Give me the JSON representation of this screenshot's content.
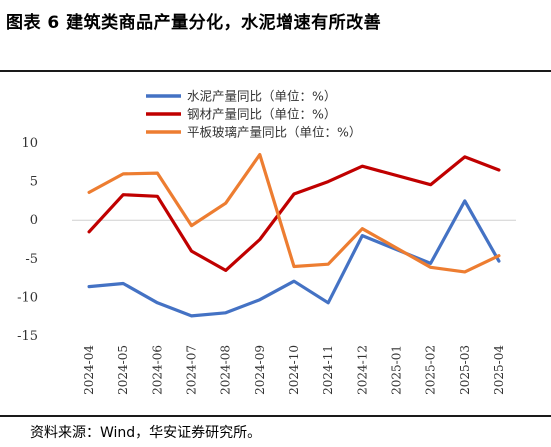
{
  "header": {
    "title": "图表 6  建筑类商品产量分化，水泥增速有所改善"
  },
  "footer": {
    "source": "资料来源：Wind，华安证券研究所。"
  },
  "chart_data": {
    "type": "line",
    "title": "",
    "xlabel": "",
    "ylabel": "",
    "ylim": [
      -15,
      10
    ],
    "yticks": [
      10,
      5,
      0,
      -5,
      -10,
      -15
    ],
    "grid": false,
    "legend_position": "top",
    "categories": [
      "2024-04",
      "2024-05",
      "2024-06",
      "2024-07",
      "2024-08",
      "2024-09",
      "2024-10",
      "2024-11",
      "2024-12",
      "2025-01",
      "2025-02",
      "2025-03",
      "2025-04"
    ],
    "series": [
      {
        "name": "水泥产量同比（单位：%）",
        "color": "#4472C4",
        "values": [
          -8.6,
          -8.2,
          -10.7,
          -12.4,
          -12.0,
          -10.3,
          -7.9,
          -10.7,
          -2.0,
          null,
          -5.6,
          2.5,
          -5.3
        ]
      },
      {
        "name": "钢材产量同比（单位：%）",
        "color": "#C00000",
        "values": [
          -1.5,
          3.3,
          3.1,
          -4.0,
          -6.5,
          -2.5,
          3.4,
          5.0,
          7.0,
          null,
          4.6,
          8.2,
          6.5
        ]
      },
      {
        "name": "平板玻璃产量同比（单位：%）",
        "color": "#ED7D31",
        "values": [
          3.6,
          6.0,
          6.1,
          -0.7,
          2.2,
          8.5,
          -6.0,
          -5.7,
          -1.1,
          null,
          -6.1,
          -6.7,
          -4.6
        ]
      }
    ]
  }
}
